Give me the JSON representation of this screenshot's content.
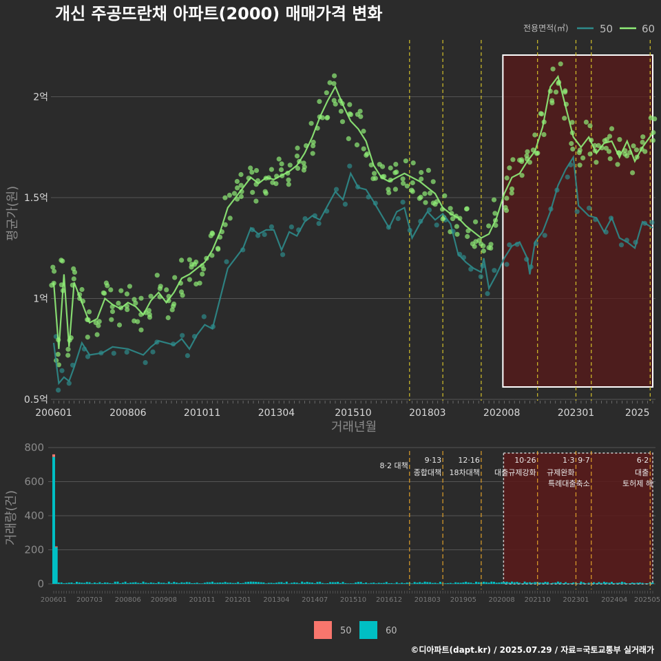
{
  "chart_data": [
    {
      "type": "line",
      "title": "개신 주공뜨란채 아파트(2000) 매매가격 변화",
      "xlabel": "거래년월",
      "ylabel": "평균가(원)",
      "x_range": [
        "200601",
        "202507"
      ],
      "ylim": [
        0.5,
        2.35
      ],
      "y_ticks": [
        "0.5억",
        "1억",
        "1.5억",
        "2억"
      ],
      "y_tick_values": [
        0.5,
        1.0,
        1.5,
        2.0
      ],
      "x_ticks": [
        "200601",
        "200806",
        "201011",
        "201304",
        "201510",
        "201803",
        "202008",
        "202301",
        "2025"
      ],
      "legend_title": "전용면적(㎡)",
      "grid": true,
      "series": [
        {
          "name": "50",
          "color": "#2e8b8b",
          "points": [
            [
              "200601",
              0.78
            ],
            [
              "200603",
              0.58
            ],
            [
              "200605",
              0.61
            ],
            [
              "200607",
              0.59
            ],
            [
              "200609",
              0.66
            ],
            [
              "200612",
              0.78
            ],
            [
              "200703",
              0.72
            ],
            [
              "200708",
              0.73
            ],
            [
              "200712",
              0.76
            ],
            [
              "200806",
              0.75
            ],
            [
              "200812",
              0.72
            ],
            [
              "200903",
              0.76
            ],
            [
              "200906",
              0.79
            ],
            [
              "200912",
              0.77
            ],
            [
              "201003",
              0.8
            ],
            [
              "201006",
              0.75
            ],
            [
              "201009",
              0.82
            ],
            [
              "201012",
              0.87
            ],
            [
              "201103",
              0.85
            ],
            [
              "201109",
              1.15
            ],
            [
              "201203",
              1.25
            ],
            [
              "201206",
              1.35
            ],
            [
              "201209",
              1.32
            ],
            [
              "201212",
              1.34
            ],
            [
              "201303",
              1.34
            ],
            [
              "201306",
              1.24
            ],
            [
              "201309",
              1.33
            ],
            [
              "201312",
              1.31
            ],
            [
              "201403",
              1.38
            ],
            [
              "201406",
              1.41
            ],
            [
              "201409",
              1.39
            ],
            [
              "201412",
              1.46
            ],
            [
              "201503",
              1.53
            ],
            [
              "201506",
              1.49
            ],
            [
              "201509",
              1.62
            ],
            [
              "201512",
              1.55
            ],
            [
              "201603",
              1.54
            ],
            [
              "201606",
              1.48
            ],
            [
              "201612",
              1.35
            ],
            [
              "201703",
              1.43
            ],
            [
              "201706",
              1.45
            ],
            [
              "201709",
              1.3
            ],
            [
              "201712",
              1.37
            ],
            [
              "201803",
              1.43
            ],
            [
              "201806",
              1.39
            ],
            [
              "201809",
              1.42
            ],
            [
              "201812",
              1.37
            ],
            [
              "201903",
              1.22
            ],
            [
              "201906",
              1.18
            ],
            [
              "201909",
              1.15
            ],
            [
              "201912",
              1.13
            ],
            [
              "202001",
              1.2
            ],
            [
              "202003",
              1.05
            ],
            [
              "202006",
              1.12
            ],
            [
              "202009",
              1.2
            ],
            [
              "202012",
              1.26
            ],
            [
              "202103",
              1.28
            ],
            [
              "202106",
              1.2
            ],
            [
              "202107",
              1.12
            ],
            [
              "202109",
              1.28
            ],
            [
              "202112",
              1.33
            ],
            [
              "202203",
              1.43
            ],
            [
              "202206",
              1.56
            ],
            [
              "202209",
              1.64
            ],
            [
              "202212",
              1.7
            ],
            [
              "202302",
              1.46
            ],
            [
              "202306",
              1.41
            ],
            [
              "202309",
              1.4
            ],
            [
              "202312",
              1.33
            ],
            [
              "202403",
              1.4
            ],
            [
              "202406",
              1.3
            ],
            [
              "202409",
              1.28
            ],
            [
              "202412",
              1.25
            ],
            [
              "202503",
              1.38
            ],
            [
              "202507",
              1.35
            ]
          ]
        },
        {
          "name": "60",
          "color": "#90ee78",
          "points": [
            [
              "200601",
              1.08
            ],
            [
              "200603",
              0.75
            ],
            [
              "200605",
              1.12
            ],
            [
              "200607",
              0.76
            ],
            [
              "200609",
              1.08
            ],
            [
              "200612",
              0.98
            ],
            [
              "200703",
              0.88
            ],
            [
              "200706",
              0.9
            ],
            [
              "200709",
              1.0
            ],
            [
              "200712",
              0.97
            ],
            [
              "200803",
              0.95
            ],
            [
              "200806",
              0.98
            ],
            [
              "200809",
              0.96
            ],
            [
              "200812",
              0.92
            ],
            [
              "200903",
              0.99
            ],
            [
              "200906",
              1.03
            ],
            [
              "200909",
              0.98
            ],
            [
              "200912",
              1.03
            ],
            [
              "201003",
              1.1
            ],
            [
              "201006",
              1.12
            ],
            [
              "201009",
              1.15
            ],
            [
              "201012",
              1.18
            ],
            [
              "201103",
              1.24
            ],
            [
              "201106",
              1.33
            ],
            [
              "201109",
              1.45
            ],
            [
              "201112",
              1.5
            ],
            [
              "201203",
              1.55
            ],
            [
              "201206",
              1.6
            ],
            [
              "201209",
              1.57
            ],
            [
              "201212",
              1.6
            ],
            [
              "201303",
              1.59
            ],
            [
              "201306",
              1.61
            ],
            [
              "201309",
              1.63
            ],
            [
              "201312",
              1.66
            ],
            [
              "201403",
              1.72
            ],
            [
              "201406",
              1.8
            ],
            [
              "201409",
              1.9
            ],
            [
              "201412",
              1.98
            ],
            [
              "201503",
              2.05
            ],
            [
              "201506",
              1.96
            ],
            [
              "201509",
              1.88
            ],
            [
              "201512",
              1.84
            ],
            [
              "201603",
              1.78
            ],
            [
              "201606",
              1.66
            ],
            [
              "201609",
              1.6
            ],
            [
              "201612",
              1.58
            ],
            [
              "201703",
              1.6
            ],
            [
              "201706",
              1.62
            ],
            [
              "201709",
              1.6
            ],
            [
              "201712",
              1.58
            ],
            [
              "201803",
              1.55
            ],
            [
              "201806",
              1.52
            ],
            [
              "201809",
              1.45
            ],
            [
              "201812",
              1.42
            ],
            [
              "201903",
              1.4
            ],
            [
              "201906",
              1.36
            ],
            [
              "201909",
              1.33
            ],
            [
              "201912",
              1.3
            ],
            [
              "202003",
              1.32
            ],
            [
              "202006",
              1.4
            ],
            [
              "202009",
              1.52
            ],
            [
              "202012",
              1.6
            ],
            [
              "202103",
              1.62
            ],
            [
              "202106",
              1.68
            ],
            [
              "202109",
              1.73
            ],
            [
              "202112",
              1.85
            ],
            [
              "202203",
              2.05
            ],
            [
              "202206",
              2.1
            ],
            [
              "202209",
              1.95
            ],
            [
              "202212",
              1.8
            ],
            [
              "202303",
              1.75
            ],
            [
              "202306",
              1.8
            ],
            [
              "202309",
              1.72
            ],
            [
              "202312",
              1.77
            ],
            [
              "202403",
              1.78
            ],
            [
              "202406",
              1.7
            ],
            [
              "202409",
              1.78
            ],
            [
              "202412",
              1.68
            ],
            [
              "202503",
              1.75
            ],
            [
              "202507",
              1.82
            ]
          ]
        }
      ]
    },
    {
      "type": "bar",
      "ylabel": "거래량(건)",
      "ylim": [
        0,
        800
      ],
      "y_ticks": [
        "0",
        "200",
        "400",
        "600",
        "800"
      ],
      "y_tick_values": [
        0,
        200,
        400,
        600,
        800
      ],
      "x_ticks": [
        "200601",
        "200703",
        "200806",
        "200908",
        "201011",
        "201201",
        "201304",
        "201407",
        "201510",
        "201612",
        "201803",
        "201905",
        "202008",
        "202110",
        "202301",
        "202404",
        "202505"
      ],
      "series": [
        {
          "name": "50",
          "color": "#f8766d",
          "values": [
            {
              "x": "200601",
              "v": 15
            },
            {
              "x": "200602",
              "v": 5
            }
          ]
        },
        {
          "name": "60",
          "color": "#00bfc4",
          "values": [
            {
              "x": "200601",
              "v": 745
            },
            {
              "x": "200602",
              "v": 215
            }
          ]
        }
      ],
      "background_volume": 8,
      "annotations": [
        {
          "date": "201708",
          "date_label": "",
          "label": "8·2 대책"
        },
        {
          "date": "201809",
          "date_label": "9·13",
          "label": "종합대책"
        },
        {
          "date": "201912",
          "date_label": "12·16",
          "label": "18차대책"
        },
        {
          "date": "202110",
          "date_label": "10·26",
          "label": "대출규제강화"
        },
        {
          "date": "202301",
          "date_label": "1·3",
          "label": "규제완화"
        },
        {
          "date": "202307",
          "date_label": "9·7",
          "label": "특례대출축소"
        },
        {
          "date": "202506",
          "date_label": "6·2",
          "label": "대출"
        }
      ],
      "extra_label": "토허제 해"
    }
  ],
  "legend": {
    "title": "전용면적(㎡)",
    "top_items": [
      "50",
      "60"
    ],
    "bottom_items": [
      "50",
      "60"
    ]
  },
  "footer": "©디아파트(dapt.kr) / 2025.07.29 / 자료=국토교통부 실거래가",
  "colors": {
    "background": "#2b2b2b",
    "grid": "#555555",
    "vline": "#d4c22a",
    "vline_bottom": "#e0a02a",
    "highlight_fill": "#5a1a1a",
    "highlight_border": "#ffffff"
  }
}
